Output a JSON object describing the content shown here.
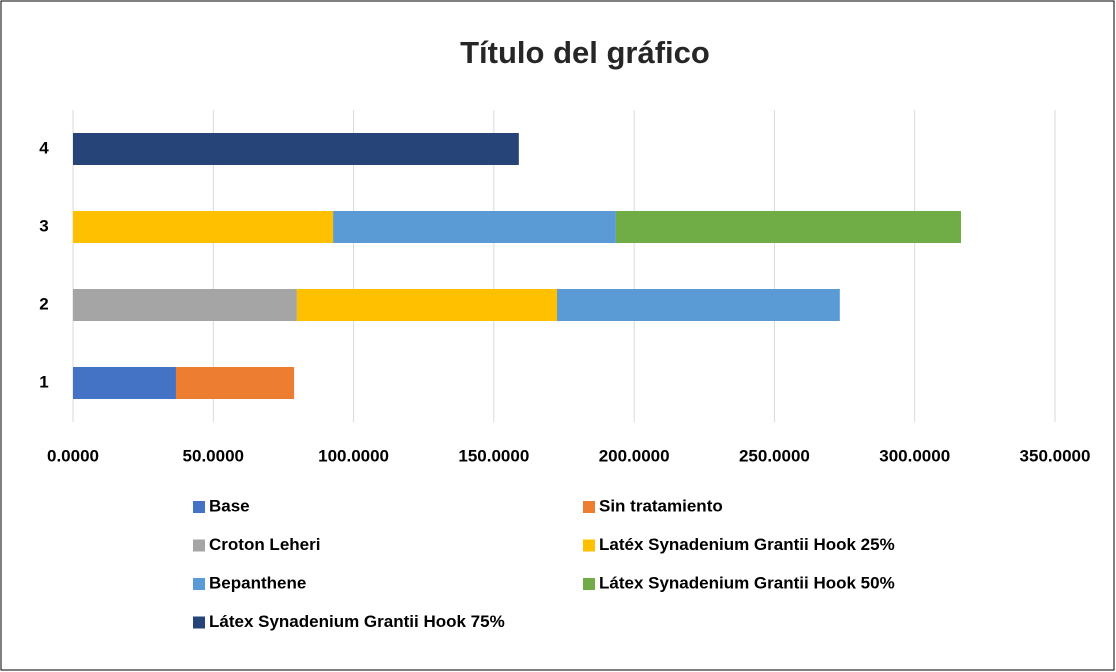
{
  "chart_data": {
    "type": "stacked_bar_horizontal",
    "title": "Título del gráfico",
    "categories": [
      "1",
      "2",
      "3",
      "4"
    ],
    "series": [
      {
        "name": "Base",
        "color": "#4472c4",
        "values": [
          36.7,
          null,
          null,
          null
        ]
      },
      {
        "name": "Sin tratamiento",
        "color": "#ed7d31",
        "values": [
          42.1,
          null,
          null,
          null
        ]
      },
      {
        "name": "Croton Leheri",
        "color": "#a5a5a5",
        "values": [
          null,
          79.8,
          null,
          null
        ]
      },
      {
        "name": "Latéx Synadenium Grantii Hook 25%",
        "color": "#ffc000",
        "values": [
          null,
          92.7,
          92.7,
          null
        ]
      },
      {
        "name": "Bepanthene",
        "color": "#5b9bd5",
        "values": [
          null,
          100.8,
          100.8,
          null
        ]
      },
      {
        "name": "Látex Synadenium Grantii Hook 50%",
        "color": "#70ad47",
        "values": [
          null,
          null,
          123.0,
          null
        ]
      },
      {
        "name": "Látex Synadenium Grantii Hook 75%",
        "color": "#264478",
        "values": [
          null,
          null,
          null,
          158.9
        ]
      }
    ],
    "xlim": [
      0,
      350
    ],
    "xticks": [
      {
        "value": 0,
        "label": "0.0000"
      },
      {
        "value": 50,
        "label": "50.0000"
      },
      {
        "value": 100,
        "label": "100.0000"
      },
      {
        "value": 150,
        "label": "150.0000"
      },
      {
        "value": 200,
        "label": "200.0000"
      },
      {
        "value": 250,
        "label": "250.0000"
      },
      {
        "value": 300,
        "label": "300.0000"
      },
      {
        "value": 350,
        "label": "350.0000"
      }
    ],
    "grid": true
  }
}
